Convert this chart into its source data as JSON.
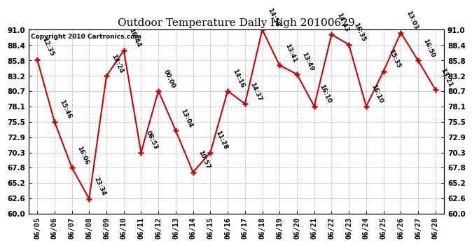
{
  "title": "Outdoor Temperature Daily High 20100629",
  "copyright": "Copyright 2010 Cartronics.com",
  "dates": [
    "06/05",
    "06/06",
    "06/07",
    "06/08",
    "06/09",
    "06/10",
    "06/11",
    "06/12",
    "06/13",
    "06/14",
    "06/15",
    "06/16",
    "06/17",
    "06/18",
    "06/19",
    "06/20",
    "06/21",
    "06/22",
    "06/23",
    "06/24",
    "06/25",
    "06/26",
    "06/27",
    "06/28"
  ],
  "values": [
    86.0,
    75.5,
    67.8,
    62.5,
    83.2,
    87.5,
    70.3,
    80.7,
    74.0,
    67.0,
    70.3,
    80.7,
    78.5,
    91.0,
    85.0,
    83.5,
    78.1,
    90.2,
    88.5,
    78.1,
    84.0,
    90.5,
    85.8,
    80.9
  ],
  "labels": [
    "12:35",
    "15:46",
    "16:06",
    "23:34",
    "14:24",
    "16:44",
    "08:53",
    "00:00",
    "13:04",
    "10:57",
    "11:28",
    "14:16",
    "14:37",
    "14:58",
    "13:41",
    "13:49",
    "16:10",
    "14:43",
    "16:35",
    "16:10",
    "15:35",
    "13:03",
    "16:50",
    "13:21"
  ],
  "yticks": [
    60.0,
    62.6,
    65.2,
    67.8,
    70.3,
    72.9,
    75.5,
    78.1,
    80.7,
    83.2,
    85.8,
    88.4,
    91.0
  ],
  "ymin": 60.0,
  "ymax": 91.0,
  "line_color": "#cc0000",
  "marker_color": "#cc0000",
  "bg_color": "#ffffff",
  "grid_color": "#bbbbbb",
  "title_fontsize": 11,
  "label_fontsize": 6.5,
  "tick_fontsize": 7.5,
  "copyright_fontsize": 6.5
}
